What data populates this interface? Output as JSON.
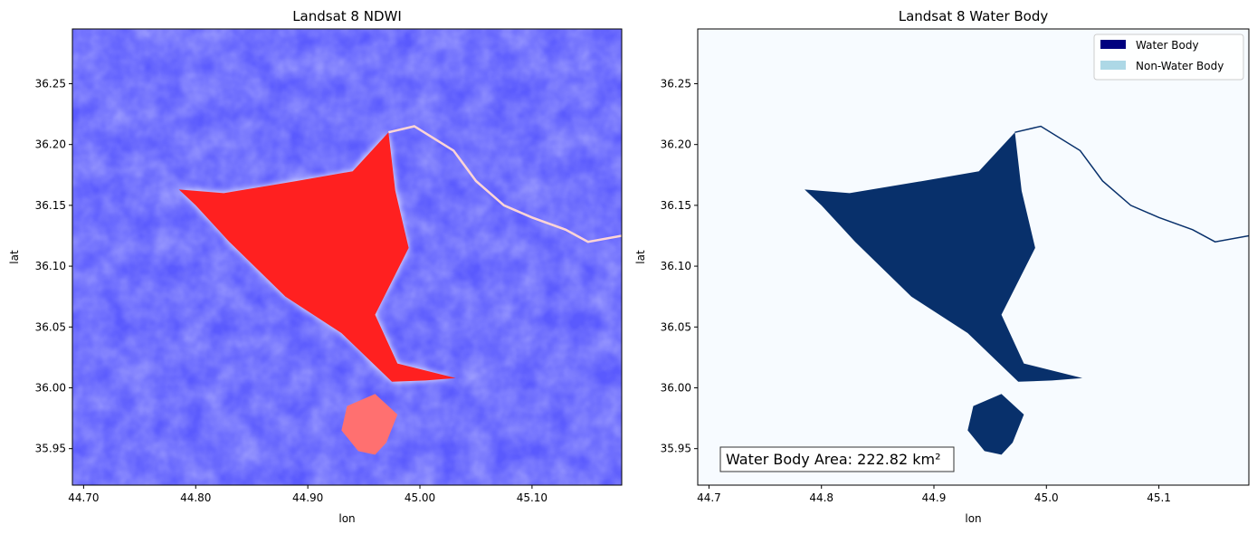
{
  "chart_data": [
    {
      "type": "heatmap",
      "title": "Landsat 8 NDWI",
      "xlabel": "lon",
      "ylabel": "lat",
      "xlim": [
        44.69,
        45.18
      ],
      "ylim": [
        35.92,
        36.295
      ],
      "xticks": [
        44.7,
        44.8,
        44.9,
        45.0,
        45.1
      ],
      "xtick_labels": [
        "44.70",
        "44.80",
        "44.90",
        "45.00",
        "45.10"
      ],
      "yticks": [
        35.95,
        36.0,
        36.05,
        36.1,
        36.15,
        36.2,
        36.25
      ],
      "ytick_labels": [
        "35.95",
        "36.00",
        "36.05",
        "36.10",
        "36.15",
        "36.20",
        "36.25"
      ],
      "colormap": "bwr",
      "colors": {
        "low": "#5a5aff",
        "high": "#ff1a1a",
        "mid": "#ffffff"
      },
      "reservoir_outline": [
        [
          44.785,
          36.163
        ],
        [
          44.825,
          36.16
        ],
        [
          44.89,
          36.17
        ],
        [
          44.94,
          36.178
        ],
        [
          44.972,
          36.21
        ],
        [
          44.978,
          36.162
        ],
        [
          44.99,
          36.115
        ],
        [
          44.96,
          36.06
        ],
        [
          44.98,
          36.02
        ],
        [
          45.032,
          36.008
        ],
        [
          45.005,
          36.006
        ],
        [
          44.975,
          36.005
        ],
        [
          44.93,
          36.045
        ],
        [
          44.88,
          36.075
        ],
        [
          44.83,
          36.12
        ],
        [
          44.8,
          36.15
        ]
      ],
      "south_arm_outline": [
        [
          44.96,
          35.995
        ],
        [
          44.98,
          35.978
        ],
        [
          44.97,
          35.955
        ],
        [
          44.96,
          35.945
        ],
        [
          44.945,
          35.948
        ],
        [
          44.93,
          35.965
        ],
        [
          44.935,
          35.985
        ]
      ]
    },
    {
      "type": "heatmap",
      "title": "Landsat 8 Water Body",
      "xlabel": "lon",
      "ylabel": "lat",
      "xlim": [
        44.69,
        45.18
      ],
      "ylim": [
        35.92,
        36.295
      ],
      "xticks": [
        44.7,
        44.8,
        44.9,
        45.0,
        45.1
      ],
      "xtick_labels": [
        "44.7",
        "44.8",
        "44.9",
        "45.0",
        "45.1"
      ],
      "yticks": [
        35.95,
        36.0,
        36.05,
        36.1,
        36.15,
        36.2,
        36.25
      ],
      "ytick_labels": [
        "35.95",
        "36.00",
        "36.05",
        "36.10",
        "36.15",
        "36.20",
        "36.25"
      ],
      "legend": [
        {
          "label": "Water Body",
          "color": "#00007f"
        },
        {
          "label": "Non-Water Body",
          "color": "#add8e6"
        }
      ],
      "legend_position": "top-right",
      "annotation": "Water Body Area: 222.82 km²",
      "colors": {
        "background": "#f7fbff",
        "water": "#08306b"
      },
      "reservoir_outline": [
        [
          44.785,
          36.163
        ],
        [
          44.825,
          36.16
        ],
        [
          44.89,
          36.17
        ],
        [
          44.94,
          36.178
        ],
        [
          44.972,
          36.21
        ],
        [
          44.978,
          36.162
        ],
        [
          44.99,
          36.115
        ],
        [
          44.96,
          36.06
        ],
        [
          44.98,
          36.02
        ],
        [
          45.032,
          36.008
        ],
        [
          45.005,
          36.006
        ],
        [
          44.975,
          36.005
        ],
        [
          44.93,
          36.045
        ],
        [
          44.88,
          36.075
        ],
        [
          44.83,
          36.12
        ],
        [
          44.8,
          36.15
        ]
      ],
      "south_arm_outline": [
        [
          44.96,
          35.995
        ],
        [
          44.98,
          35.978
        ],
        [
          44.97,
          35.955
        ],
        [
          44.96,
          35.945
        ],
        [
          44.945,
          35.948
        ],
        [
          44.93,
          35.965
        ],
        [
          44.935,
          35.985
        ]
      ]
    }
  ]
}
